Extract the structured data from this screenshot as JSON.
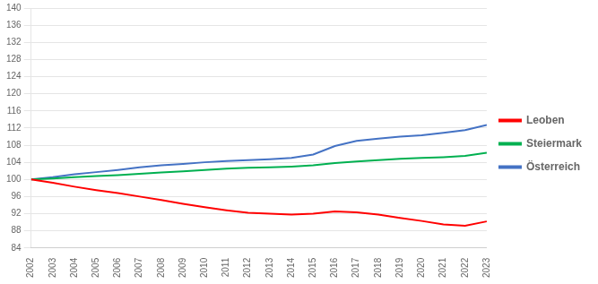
{
  "chart_data": {
    "type": "line",
    "x": [
      2002,
      2003,
      2004,
      2005,
      2006,
      2007,
      2008,
      2009,
      2010,
      2011,
      2012,
      2013,
      2014,
      2015,
      2016,
      2017,
      2018,
      2019,
      2020,
      2021,
      2022,
      2023
    ],
    "series": [
      {
        "name": "Leoben",
        "color": "#ff0000",
        "values": [
          100.0,
          99.2,
          98.3,
          97.5,
          96.8,
          96.0,
          95.2,
          94.3,
          93.5,
          92.8,
          92.2,
          92.0,
          91.8,
          92.0,
          92.5,
          92.3,
          91.8,
          91.0,
          90.3,
          89.5,
          89.2,
          90.2
        ]
      },
      {
        "name": "Steiermark",
        "color": "#00b050",
        "values": [
          100.0,
          100.2,
          100.5,
          100.8,
          101.0,
          101.3,
          101.6,
          101.9,
          102.2,
          102.5,
          102.7,
          102.8,
          103.0,
          103.3,
          103.8,
          104.2,
          104.5,
          104.8,
          105.0,
          105.2,
          105.5,
          106.2
        ]
      },
      {
        "name": "Österreich",
        "color": "#4472c4",
        "values": [
          100.0,
          100.5,
          101.2,
          101.7,
          102.2,
          102.8,
          103.3,
          103.6,
          104.0,
          104.3,
          104.5,
          104.7,
          105.0,
          105.8,
          107.8,
          109.0,
          109.5,
          110.0,
          110.3,
          110.9,
          111.5,
          112.7
        ]
      }
    ],
    "xlim": [
      2002,
      2023
    ],
    "xticks": [
      2002,
      2003,
      2004,
      2005,
      2006,
      2007,
      2008,
      2009,
      2010,
      2011,
      2012,
      2013,
      2014,
      2015,
      2016,
      2017,
      2018,
      2019,
      2020,
      2021,
      2022,
      2023
    ],
    "ylim": [
      84,
      140
    ],
    "yticks": [
      84,
      88,
      92,
      96,
      100,
      104,
      108,
      112,
      116,
      120,
      124,
      128,
      132,
      136,
      140
    ],
    "grid": "y",
    "legend": "right"
  }
}
